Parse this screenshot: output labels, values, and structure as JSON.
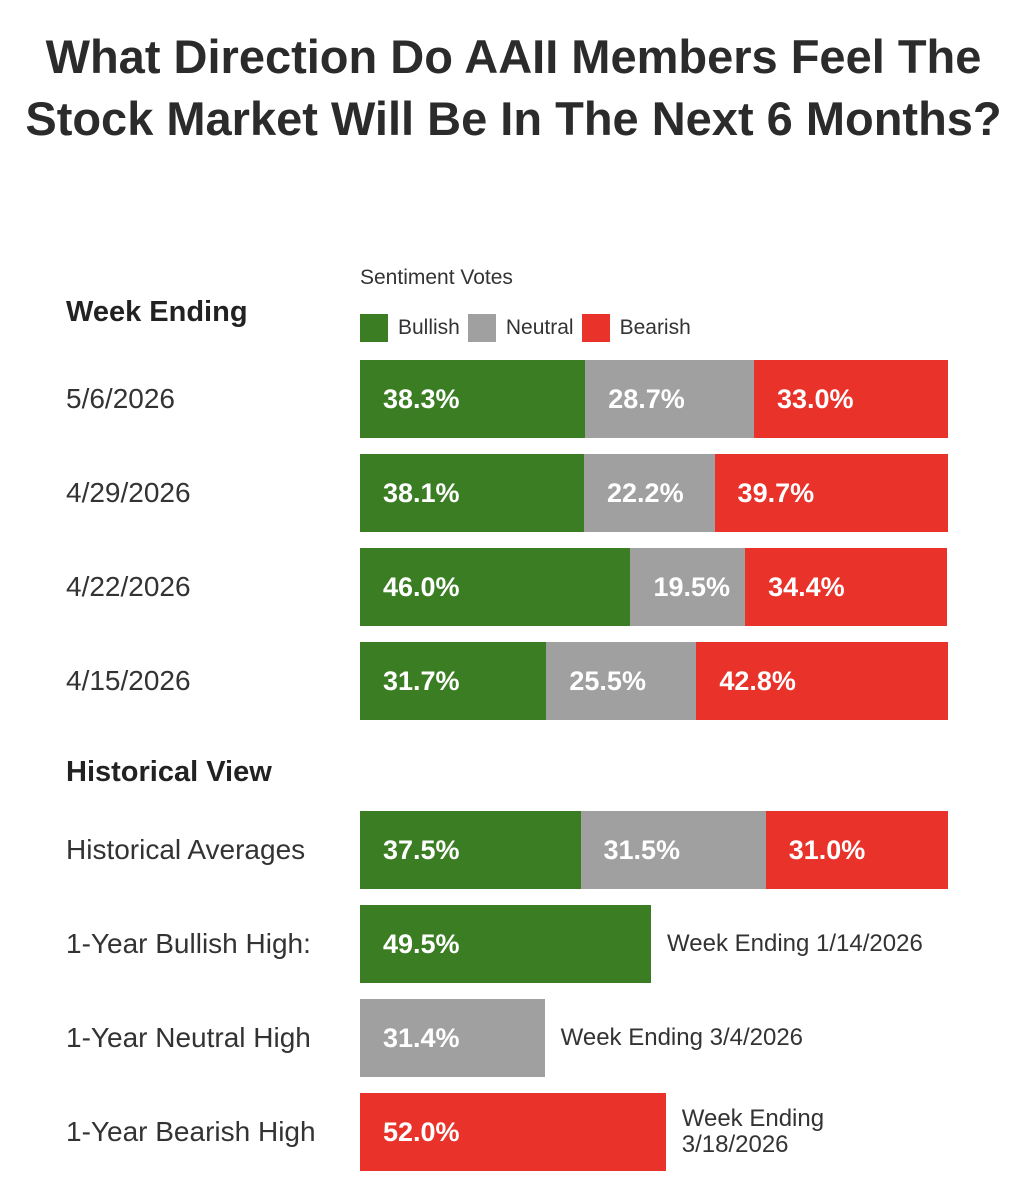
{
  "chart_data": {
    "type": "bar",
    "orientation": "horizontal",
    "stacked": true,
    "title": "What Direction Do AAII Members Feel The Stock Market Will Be In The Next 6 Months?",
    "legend_title": "Sentiment Votes",
    "legend": [
      {
        "name": "Bullish",
        "color": "#3a7d23"
      },
      {
        "name": "Neutral",
        "color": "#a0a0a0"
      },
      {
        "name": "Bearish",
        "color": "#e8322a"
      }
    ],
    "xlim": [
      0,
      100
    ],
    "sections": [
      {
        "heading": "Week Ending",
        "rows": [
          {
            "label": "5/6/2026",
            "values": [
              38.3,
              28.7,
              33.0
            ],
            "texts": [
              "38.3%",
              "28.7%",
              "33.0%"
            ]
          },
          {
            "label": "4/29/2026",
            "values": [
              38.1,
              22.2,
              39.7
            ],
            "texts": [
              "38.1%",
              "22.2%",
              "39.7%"
            ]
          },
          {
            "label": "4/22/2026",
            "values": [
              46.0,
              19.5,
              34.4
            ],
            "texts": [
              "46.0%",
              "19.5%",
              "34.4%"
            ]
          },
          {
            "label": "4/15/2026",
            "values": [
              31.7,
              25.5,
              42.8
            ],
            "texts": [
              "31.7%",
              "25.5%",
              "42.8%"
            ]
          }
        ]
      },
      {
        "heading": "Historical View",
        "rows": [
          {
            "label": "Historical Averages",
            "values": [
              37.5,
              31.5,
              31.0
            ],
            "texts": [
              "37.5%",
              "31.5%",
              "31.0%"
            ]
          },
          {
            "label": "1-Year Bullish High:",
            "values": [
              49.5,
              0,
              0
            ],
            "texts": [
              "49.5%",
              "",
              ""
            ],
            "note": [
              "Week Ending 1/14/2026"
            ]
          },
          {
            "label": "1-Year Neutral High",
            "values": [
              0,
              31.4,
              0
            ],
            "texts": [
              "",
              "31.4%",
              ""
            ],
            "note": [
              "Week Ending 3/4/2026"
            ]
          },
          {
            "label": "1-Year Bearish High",
            "values": [
              0,
              0,
              52.0
            ],
            "texts": [
              "",
              "",
              "52.0%"
            ],
            "note": [
              "Week Ending",
              "3/18/2026"
            ]
          }
        ]
      }
    ]
  }
}
